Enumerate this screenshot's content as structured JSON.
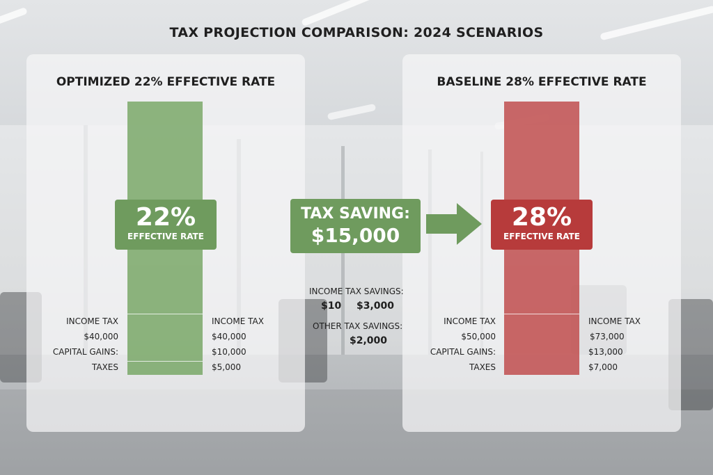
{
  "title": "TAX PROJECTION COMPARISON: 2024 SCENARIOS",
  "colors": {
    "optimized": "#6f9b5e",
    "baseline": "#b73b3b",
    "optimized_col": "#7aa868",
    "baseline_col": "#c25353"
  },
  "background_description_icon": "blurred-office-background",
  "optimized": {
    "panel_title": "OPTIMIZED 22% EFFECTIVE RATE",
    "rate": "22%",
    "rate_label": "EFFECTIVE RATE",
    "left_labels": [
      "INCOME TAX",
      "$40,000",
      "CAPITAL GAINS:",
      "TAXES"
    ],
    "right_labels": [
      "INCOME TAX",
      "$40,000",
      "$10,000",
      "$5,000"
    ]
  },
  "baseline": {
    "panel_title": "BASELINE 28% EFFECTIVE RATE",
    "rate": "28%",
    "rate_label": "EFFECTIVE RATE",
    "left_labels": [
      "INCOME TAX",
      "$50,000",
      "CAPITAL GAINS:",
      "TAXES"
    ],
    "right_labels": [
      "INCOME TAX",
      "$73,000",
      "$13,000",
      "$7,000"
    ]
  },
  "saving": {
    "label": "TAX SAVING:",
    "amount": "$15,000",
    "income_tax_label": "INCOME TAX SAVINGS:",
    "income_tax_value_a": "$10",
    "income_tax_value_b": "$3,000",
    "other_label": "OTHER TAX SAVINGS:",
    "other_value": "$2,000"
  },
  "chart_data": {
    "type": "bar",
    "categories": [
      "OPTIMIZED 22% EFFECTIVE RATE",
      "BASELINE 28% EFFECTIVE RATE"
    ],
    "values": [
      22,
      28
    ],
    "title": "TAX PROJECTION COMPARISON: 2024 SCENARIOS",
    "xlabel": "",
    "ylabel": ""
  }
}
